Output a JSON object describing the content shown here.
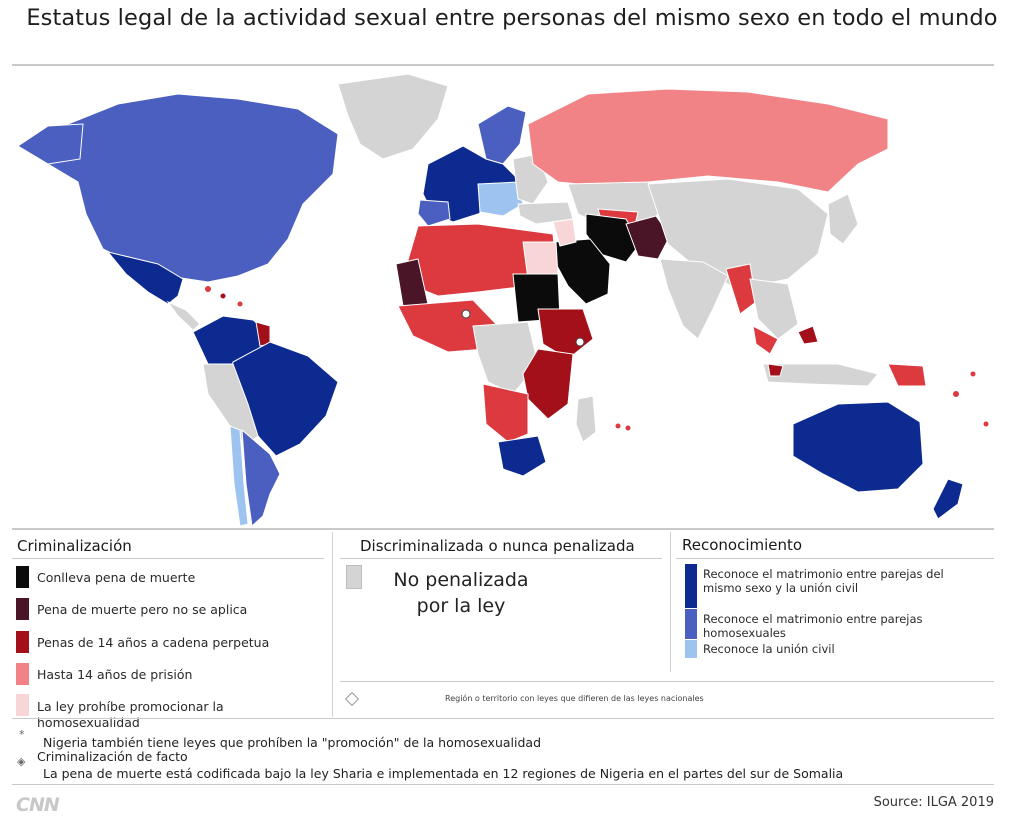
{
  "title": "Estatus legal de la actividad sexual entre personas del mismo sexo en todo el mundo",
  "colors": {
    "death": "#0b0b0b",
    "death_not_applied": "#4a1526",
    "life": "#a3101a",
    "up14": "#dc3a3f",
    "promotion": "#f2a2a6",
    "promo_light": "#f8d6d8",
    "not_penalized": "#d4d4d4",
    "marriage_union": "#0c2a8f",
    "marriage": "#4a5fbf",
    "union": "#9dc3f0"
  },
  "legend": {
    "criminalization": {
      "title": "Criminalización",
      "items": [
        {
          "label": "Conlleva pena de muerte",
          "color": "#0b0b0b"
        },
        {
          "label": "Pena de muerte pero no se aplica",
          "color": "#4a1526"
        },
        {
          "label": "Penas de 14 años a cadena perpetua",
          "color": "#a3101a"
        },
        {
          "label": "Hasta 14 años de prisión",
          "color": "#f18386"
        },
        {
          "label": "La ley prohíbe promocionar la homosexualidad",
          "color": "#f8d6d8"
        }
      ]
    },
    "decriminalized": {
      "title": "Discriminalizada o nunca penalizada",
      "label": "No penalizada por la ley",
      "region_note": "Región o territorio con leyes que difieren de las leyes nacionales"
    },
    "recognition": {
      "title": "Reconocimiento",
      "items": [
        {
          "label": "Reconoce el matrimonio entre parejas del mismo sexo y la unión civil",
          "color": "#0c2a8f"
        },
        {
          "label": "Reconoce el matrimonio entre parejas homosexuales",
          "color": "#4a5fbf"
        },
        {
          "label": "Reconoce la unión civil",
          "color": "#9dc3f0"
        }
      ]
    }
  },
  "notes": {
    "star_note": "Nigeria también tiene leyes que prohíben la \"promoción\" de la homosexualidad",
    "de_facto_label": "Criminalización de facto",
    "sharia_note": "La pena de muerte está codificada bajo la ley Sharia e implementada en 12 regiones de Nigeria en el partes del sur de Somalia"
  },
  "footer": {
    "logo": "CNN",
    "source": "Source: ILGA 2019"
  }
}
